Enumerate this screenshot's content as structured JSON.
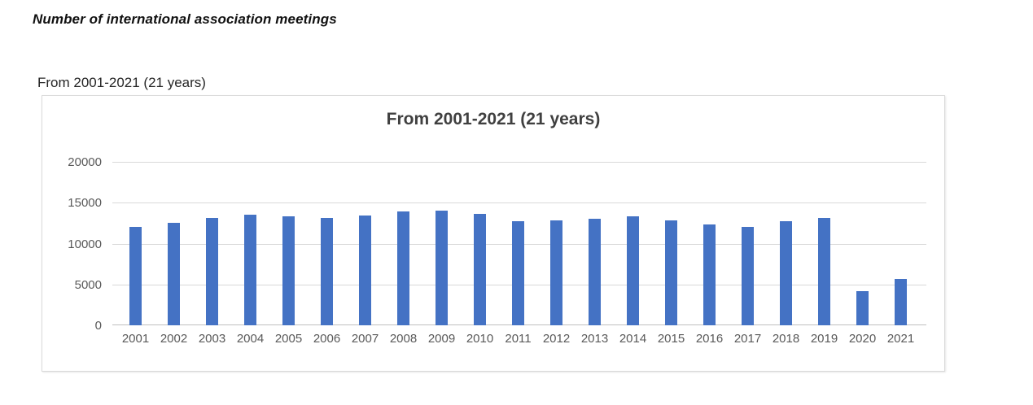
{
  "page": {
    "heading": "Number of international association meetings",
    "chart_label": "From 2001-2021 (21 years)"
  },
  "chart_data": {
    "type": "bar",
    "title": "From 2001-2021 (21 years)",
    "categories": [
      "2001",
      "2002",
      "2003",
      "2004",
      "2005",
      "2006",
      "2007",
      "2008",
      "2009",
      "2010",
      "2011",
      "2012",
      "2013",
      "2014",
      "2015",
      "2016",
      "2017",
      "2018",
      "2019",
      "2020",
      "2021"
    ],
    "values": [
      12000,
      12550,
      13150,
      13500,
      13300,
      13150,
      13450,
      13900,
      14000,
      13600,
      12700,
      12800,
      13000,
      13350,
      12800,
      12300,
      12050,
      12700,
      13150,
      4200,
      5650
    ],
    "xlabel": "",
    "ylabel": "",
    "ylim": [
      0,
      20000
    ],
    "ytick_step": 5000,
    "ytick_labels": [
      "0",
      "5000",
      "10000",
      "15000",
      "20000"
    ],
    "grid": true,
    "legend": "none",
    "bar_color": "#4472C4",
    "gridline_color": "#d9d9d9",
    "baseline_color": "#bfbfbf",
    "axis_label_color": "#595959",
    "title_color": "#404040"
  }
}
